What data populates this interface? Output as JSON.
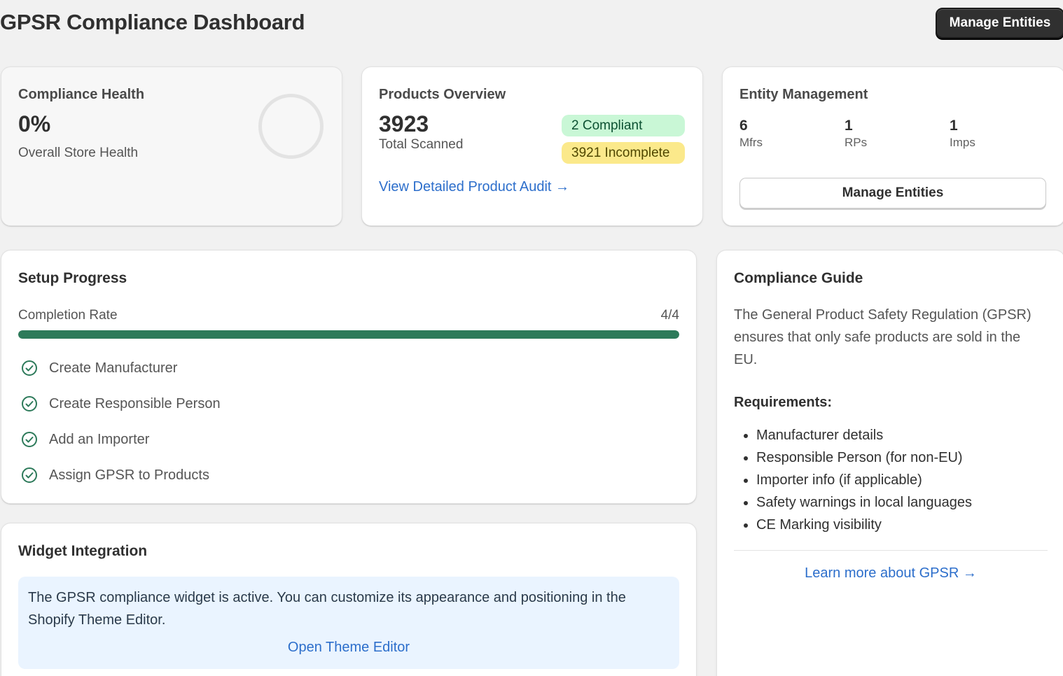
{
  "header": {
    "title": "GPSR Compliance Dashboard",
    "manage_button": "Manage Entities"
  },
  "compliance_health": {
    "title": "Compliance Health",
    "value": "0%",
    "label": "Overall Store Health",
    "percent": 0
  },
  "products_overview": {
    "title": "Products Overview",
    "total": "3923",
    "total_label": "Total Scanned",
    "compliant_badge": "2 Compliant",
    "incomplete_badge": "3921 Incomplete",
    "audit_link": "View Detailed Product Audit →"
  },
  "entity_management": {
    "title": "Entity Management",
    "stats": [
      {
        "value": "6",
        "label": "Mfrs"
      },
      {
        "value": "1",
        "label": "RPs"
      },
      {
        "value": "1",
        "label": "Imps"
      }
    ],
    "button": "Manage Entities"
  },
  "setup_progress": {
    "title": "Setup Progress",
    "rate_label": "Completion Rate",
    "rate_value": "4/4",
    "completed": 4,
    "total": 4,
    "steps": [
      {
        "label": "Create Manufacturer",
        "done": true
      },
      {
        "label": "Create Responsible Person",
        "done": true
      },
      {
        "label": "Add an Importer",
        "done": true
      },
      {
        "label": "Assign GPSR to Products",
        "done": true
      }
    ]
  },
  "widget_integration": {
    "title": "Widget Integration",
    "message": "The GPSR compliance widget is active. You can customize its appearance and positioning in the Shopify Theme Editor.",
    "link": "Open Theme Editor"
  },
  "compliance_guide": {
    "title": "Compliance Guide",
    "intro": "The General Product Safety Regulation (GPSR) ensures that only safe products are sold in the EU.",
    "requirements_title": "Requirements:",
    "requirements": [
      "Manufacturer details",
      "Responsible Person (for non-EU)",
      "Importer info (if applicable)",
      "Safety warnings in local languages",
      "CE Marking visibility"
    ],
    "link": "Learn more about GPSR →"
  },
  "colors": {
    "accent_link": "#2c6ecb",
    "progress_fill": "#2d7a5a",
    "badge_green_bg": "#c9f7d6",
    "badge_yellow_bg": "#fbe98b",
    "primary_button": "#303030"
  },
  "icons": {
    "step_done": "check-circle-icon"
  }
}
